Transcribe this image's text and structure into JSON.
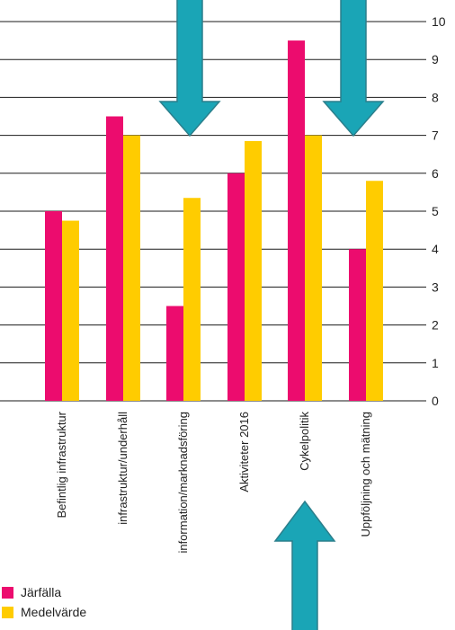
{
  "colors": {
    "primary": "#EC0C6E",
    "secondary": "#FFCC00",
    "arrow": "#1AA5B6",
    "arrow_stroke": "#2B7F8C",
    "grid": "#1a1a1a"
  },
  "chart_data": {
    "type": "bar",
    "title": "",
    "xlabel": "",
    "ylabel": "",
    "ylim": [
      0,
      10
    ],
    "y_ticks": [
      "0",
      "1",
      "2",
      "3",
      "4",
      "5",
      "6",
      "7",
      "8",
      "9",
      "10"
    ],
    "categories": [
      "Befintlig infrastruktur",
      "infrastruktur/underhåll",
      "information/marknadsföring",
      "Aktiviteter 2016",
      "Cykelpolitik",
      "Uppföljning och mätning"
    ],
    "series": [
      {
        "name": "Järfälla",
        "values": [
          5.0,
          7.5,
          2.5,
          6.0,
          9.5,
          4.0
        ]
      },
      {
        "name": "Medelvärde",
        "values": [
          4.75,
          7.0,
          5.35,
          6.85,
          7.0,
          5.8
        ]
      }
    ],
    "grid": true,
    "legend_position": "bottom-left",
    "annotations": [
      "down-arrow",
      "down-arrow",
      "up-arrow"
    ]
  }
}
